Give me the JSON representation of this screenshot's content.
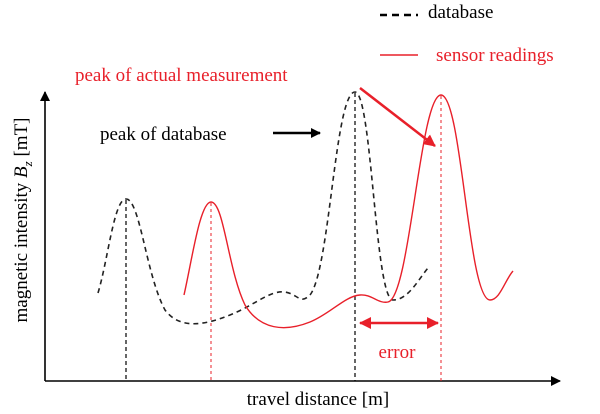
{
  "legend": [
    {
      "label": "database"
    },
    {
      "label": "sensor readings"
    }
  ],
  "annotations": {
    "peak_actual": "peak of actual measurement",
    "peak_database": "peak of database",
    "error": "error"
  },
  "axes": {
    "x_label": "travel distance [m]",
    "y_label": {
      "prefix": "magnetic intensity ",
      "symbol": "B",
      "subscript": "z",
      "unit": " [mT]"
    }
  }
}
